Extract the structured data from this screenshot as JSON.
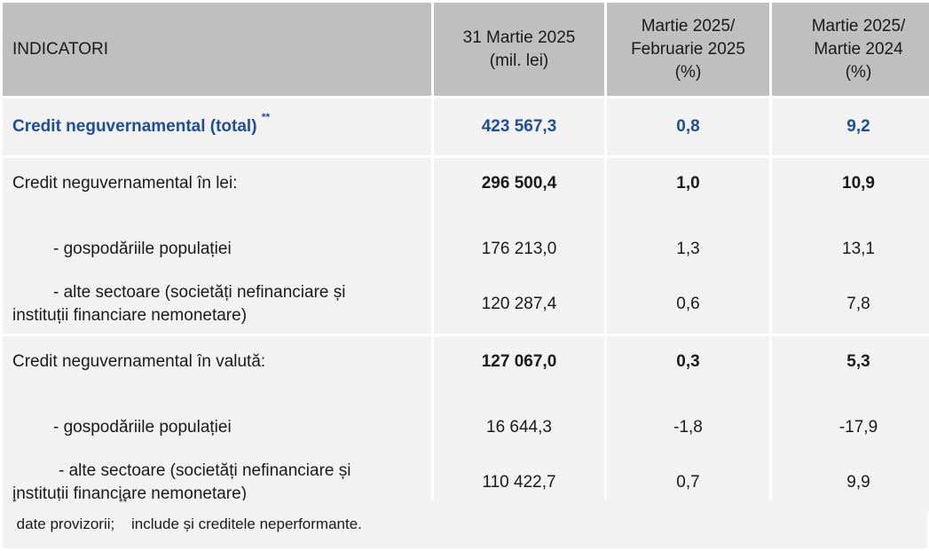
{
  "header": {
    "indicator": "INDICATORI",
    "col_value_l1": "31 Martie 2025",
    "col_value_l2": "(mil. lei)",
    "col_mom_l1": "Martie 2025/",
    "col_mom_l2": "Februarie 2025",
    "col_mom_l3": "(%)",
    "col_yoy_l1": "Martie 2025/",
    "col_yoy_l2": "Martie 2024",
    "col_yoy_l3": "(%)"
  },
  "rows": {
    "total": {
      "label": "Credit neguvernamental (total)",
      "sup": "**",
      "value": "423 567,3",
      "mom": "0,8",
      "yoy": "9,2"
    },
    "lei": {
      "label": "Credit neguvernamental în lei:",
      "value": "296 500,4",
      "mom": "1,0",
      "yoy": "10,9"
    },
    "lei_households": {
      "label": "- gospodăriile populației",
      "value": "176 213,0",
      "mom": "1,3",
      "yoy": "13,1"
    },
    "lei_other": {
      "label_l1": "- alte sectoare (societăți nefinanciare și",
      "label_l2": "instituții financiare nemonetare)",
      "value": "120 287,4",
      "mom": "0,6",
      "yoy": "7,8"
    },
    "fx": {
      "label": "Credit neguvernamental în valută:",
      "value": "127 067,0",
      "mom": "0,3",
      "yoy": "5,3"
    },
    "fx_households": {
      "label": "- gospodăriile populației",
      "value": "16 644,3",
      "mom": "-1,8",
      "yoy": "-17,9"
    },
    "fx_other": {
      "label_l1": "- alte sectoare (societăți nefinanciare și",
      "label_l2": "instituții financiare nemonetare)",
      "value": "110 422,7",
      "mom": "0,7",
      "yoy": "9,9"
    }
  },
  "footnote": {
    "sup1": "*",
    "text1": "date provizorii; ",
    "sup2": "**",
    "text2": " include și creditele neperformante."
  }
}
